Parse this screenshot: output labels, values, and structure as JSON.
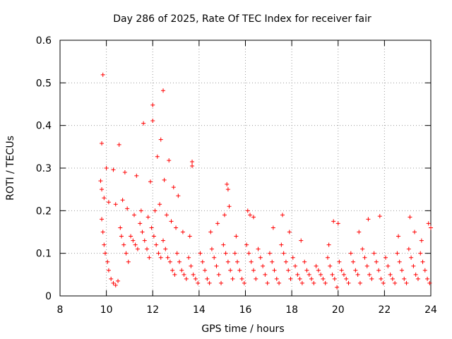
{
  "chart_data": {
    "type": "scatter",
    "title": "Day 286 of 2025, Rate Of TEC Index for receiver fair",
    "xlabel": "GPS time / hours",
    "ylabel": "ROTI / TECUs",
    "xlim": [
      8,
      24
    ],
    "ylim": [
      0,
      0.6
    ],
    "xticks": [
      8,
      10,
      12,
      14,
      16,
      18,
      20,
      22,
      24
    ],
    "yticks": [
      0,
      0.1,
      0.2,
      0.3,
      0.4,
      0.5,
      0.6
    ],
    "xtick_labels": [
      "8",
      "10",
      "12",
      "14",
      "16",
      "18",
      "20",
      "22",
      "24"
    ],
    "ytick_labels": [
      "0",
      "0.1",
      "0.2",
      "0.3",
      "0.4",
      "0.5",
      "0.6"
    ],
    "grid": true,
    "marker": "+",
    "marker_color": "#ff0000",
    "series": [
      {
        "name": "ROTI",
        "points": [
          [
            9.85,
            0.519
          ],
          [
            12.45,
            0.482
          ],
          [
            12.0,
            0.448
          ],
          [
            12.0,
            0.411
          ],
          [
            11.6,
            0.405
          ],
          [
            9.8,
            0.358
          ],
          [
            10.55,
            0.355
          ],
          [
            12.35,
            0.367
          ],
          [
            12.2,
            0.327
          ],
          [
            12.7,
            0.318
          ],
          [
            13.7,
            0.315
          ],
          [
            13.7,
            0.305
          ],
          [
            10.0,
            0.3
          ],
          [
            10.3,
            0.296
          ],
          [
            10.8,
            0.29
          ],
          [
            11.3,
            0.282
          ],
          [
            11.9,
            0.268
          ],
          [
            12.5,
            0.272
          ],
          [
            12.9,
            0.255
          ],
          [
            13.1,
            0.235
          ],
          [
            9.75,
            0.27
          ],
          [
            9.8,
            0.25
          ],
          [
            9.9,
            0.23
          ],
          [
            10.1,
            0.22
          ],
          [
            10.4,
            0.215
          ],
          [
            10.7,
            0.225
          ],
          [
            10.9,
            0.205
          ],
          [
            11.2,
            0.19
          ],
          [
            11.5,
            0.2
          ],
          [
            11.8,
            0.185
          ],
          [
            12.1,
            0.2
          ],
          [
            12.3,
            0.215
          ],
          [
            12.6,
            0.19
          ],
          [
            12.8,
            0.175
          ],
          [
            13.0,
            0.16
          ],
          [
            13.3,
            0.15
          ],
          [
            13.6,
            0.14
          ],
          [
            15.2,
            0.262
          ],
          [
            15.25,
            0.25
          ],
          [
            15.3,
            0.21
          ],
          [
            15.1,
            0.19
          ],
          [
            14.5,
            0.15
          ],
          [
            14.8,
            0.17
          ],
          [
            15.6,
            0.14
          ],
          [
            16.1,
            0.2
          ],
          [
            16.2,
            0.19
          ],
          [
            16.35,
            0.185
          ],
          [
            17.2,
            0.16
          ],
          [
            17.6,
            0.19
          ],
          [
            17.9,
            0.15
          ],
          [
            18.4,
            0.13
          ],
          [
            19.6,
            0.12
          ],
          [
            19.8,
            0.175
          ],
          [
            20.0,
            0.17
          ],
          [
            20.9,
            0.15
          ],
          [
            21.3,
            0.18
          ],
          [
            21.8,
            0.187
          ],
          [
            22.6,
            0.14
          ],
          [
            23.1,
            0.185
          ],
          [
            23.3,
            0.15
          ],
          [
            23.6,
            0.13
          ],
          [
            23.9,
            0.17
          ],
          [
            24.0,
            0.16
          ],
          [
            9.8,
            0.18
          ],
          [
            9.85,
            0.15
          ],
          [
            9.9,
            0.12
          ],
          [
            9.95,
            0.1
          ],
          [
            10.05,
            0.08
          ],
          [
            10.1,
            0.06
          ],
          [
            10.2,
            0.04
          ],
          [
            10.3,
            0.03
          ],
          [
            10.4,
            0.025
          ],
          [
            10.5,
            0.035
          ],
          [
            10.6,
            0.16
          ],
          [
            10.65,
            0.14
          ],
          [
            10.75,
            0.12
          ],
          [
            10.85,
            0.1
          ],
          [
            10.95,
            0.08
          ],
          [
            11.05,
            0.14
          ],
          [
            11.15,
            0.13
          ],
          [
            11.25,
            0.12
          ],
          [
            11.35,
            0.11
          ],
          [
            11.45,
            0.17
          ],
          [
            11.55,
            0.15
          ],
          [
            11.65,
            0.13
          ],
          [
            11.75,
            0.11
          ],
          [
            11.85,
            0.09
          ],
          [
            11.95,
            0.16
          ],
          [
            12.05,
            0.14
          ],
          [
            12.15,
            0.12
          ],
          [
            12.25,
            0.1
          ],
          [
            12.35,
            0.09
          ],
          [
            12.45,
            0.13
          ],
          [
            12.55,
            0.11
          ],
          [
            12.65,
            0.09
          ],
          [
            12.75,
            0.08
          ],
          [
            12.85,
            0.06
          ],
          [
            12.95,
            0.05
          ],
          [
            13.05,
            0.1
          ],
          [
            13.15,
            0.08
          ],
          [
            13.25,
            0.06
          ],
          [
            13.35,
            0.05
          ],
          [
            13.45,
            0.04
          ],
          [
            13.55,
            0.09
          ],
          [
            13.65,
            0.07
          ],
          [
            13.75,
            0.05
          ],
          [
            13.85,
            0.04
          ],
          [
            13.95,
            0.03
          ],
          [
            14.05,
            0.1
          ],
          [
            14.15,
            0.08
          ],
          [
            14.25,
            0.06
          ],
          [
            14.35,
            0.04
          ],
          [
            14.45,
            0.03
          ],
          [
            14.55,
            0.11
          ],
          [
            14.65,
            0.09
          ],
          [
            14.75,
            0.07
          ],
          [
            14.85,
            0.05
          ],
          [
            14.95,
            0.03
          ],
          [
            15.05,
            0.12
          ],
          [
            15.15,
            0.1
          ],
          [
            15.25,
            0.08
          ],
          [
            15.35,
            0.06
          ],
          [
            15.45,
            0.04
          ],
          [
            15.55,
            0.1
          ],
          [
            15.65,
            0.08
          ],
          [
            15.75,
            0.06
          ],
          [
            15.85,
            0.04
          ],
          [
            15.95,
            0.03
          ],
          [
            16.05,
            0.12
          ],
          [
            16.15,
            0.1
          ],
          [
            16.25,
            0.08
          ],
          [
            16.35,
            0.06
          ],
          [
            16.45,
            0.04
          ],
          [
            16.55,
            0.11
          ],
          [
            16.65,
            0.09
          ],
          [
            16.75,
            0.07
          ],
          [
            16.85,
            0.05
          ],
          [
            16.95,
            0.03
          ],
          [
            17.05,
            0.1
          ],
          [
            17.15,
            0.08
          ],
          [
            17.25,
            0.06
          ],
          [
            17.35,
            0.04
          ],
          [
            17.45,
            0.03
          ],
          [
            17.55,
            0.12
          ],
          [
            17.65,
            0.1
          ],
          [
            17.75,
            0.08
          ],
          [
            17.85,
            0.06
          ],
          [
            17.95,
            0.04
          ],
          [
            18.05,
            0.09
          ],
          [
            18.15,
            0.07
          ],
          [
            18.25,
            0.05
          ],
          [
            18.35,
            0.04
          ],
          [
            18.45,
            0.03
          ],
          [
            18.55,
            0.08
          ],
          [
            18.65,
            0.06
          ],
          [
            18.75,
            0.05
          ],
          [
            18.85,
            0.04
          ],
          [
            18.95,
            0.03
          ],
          [
            19.05,
            0.07
          ],
          [
            19.15,
            0.06
          ],
          [
            19.25,
            0.05
          ],
          [
            19.35,
            0.04
          ],
          [
            19.45,
            0.03
          ],
          [
            19.55,
            0.09
          ],
          [
            19.65,
            0.07
          ],
          [
            19.75,
            0.05
          ],
          [
            19.85,
            0.04
          ],
          [
            19.95,
            0.02
          ],
          [
            20.05,
            0.08
          ],
          [
            20.15,
            0.06
          ],
          [
            20.25,
            0.05
          ],
          [
            20.35,
            0.04
          ],
          [
            20.45,
            0.03
          ],
          [
            20.55,
            0.1
          ],
          [
            20.65,
            0.08
          ],
          [
            20.75,
            0.06
          ],
          [
            20.85,
            0.05
          ],
          [
            20.95,
            0.03
          ],
          [
            21.05,
            0.11
          ],
          [
            21.15,
            0.09
          ],
          [
            21.25,
            0.07
          ],
          [
            21.35,
            0.05
          ],
          [
            21.45,
            0.04
          ],
          [
            21.55,
            0.1
          ],
          [
            21.65,
            0.08
          ],
          [
            21.75,
            0.06
          ],
          [
            21.85,
            0.04
          ],
          [
            21.95,
            0.03
          ],
          [
            22.05,
            0.09
          ],
          [
            22.15,
            0.07
          ],
          [
            22.25,
            0.05
          ],
          [
            22.35,
            0.04
          ],
          [
            22.45,
            0.03
          ],
          [
            22.55,
            0.1
          ],
          [
            22.65,
            0.08
          ],
          [
            22.75,
            0.06
          ],
          [
            22.85,
            0.04
          ],
          [
            22.95,
            0.03
          ],
          [
            23.05,
            0.11
          ],
          [
            23.15,
            0.09
          ],
          [
            23.25,
            0.07
          ],
          [
            23.35,
            0.05
          ],
          [
            23.45,
            0.04
          ],
          [
            23.55,
            0.1
          ],
          [
            23.65,
            0.08
          ],
          [
            23.75,
            0.06
          ],
          [
            23.85,
            0.04
          ],
          [
            23.95,
            0.03
          ]
        ]
      }
    ]
  }
}
